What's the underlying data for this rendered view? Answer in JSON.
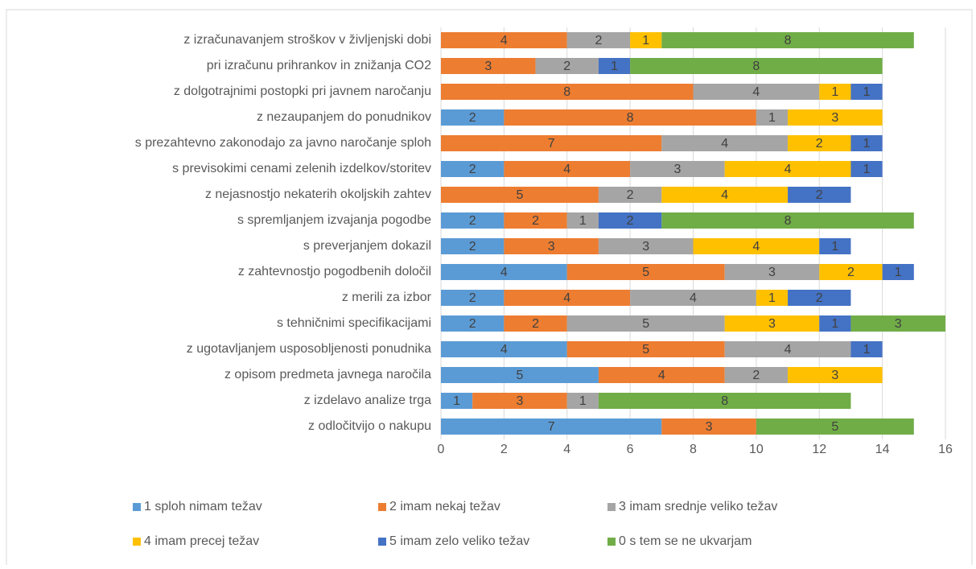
{
  "chart_data": {
    "type": "stacked-bar-horizontal",
    "categories": [
      "z izračunavanjem stroškov v življenjski dobi",
      "pri izračunu prihrankov in znižanja CO2",
      "z dolgotrajnimi postopki pri javnem naročanju",
      "z nezaupanjem do ponudnikov",
      "s prezahtevno zakonodajo za javno naročanje sploh",
      "s previsokimi cenami zelenih izdelkov/storitev",
      "z nejasnostjo nekaterih okoljskih zahtev",
      "s spremljanjem izvajanja pogodbe",
      "s preverjanjem dokazil",
      "z zahtevnostjo pogodbenih določil",
      "z merili za izbor",
      "s tehničnimi specifikacijami",
      "z ugotavljanjem usposobljenosti ponudnika",
      "z opisom predmeta javnega naročila",
      "z izdelavo analize trga",
      "z odločitvijo o nakupu"
    ],
    "series": [
      {
        "name": "1 sploh nimam težav",
        "color": "#5b9bd5",
        "values": [
          null,
          null,
          null,
          2,
          null,
          2,
          null,
          2,
          2,
          4,
          2,
          2,
          4,
          5,
          1,
          7
        ]
      },
      {
        "name": "2 imam nekaj težav",
        "color": "#ed7d31",
        "values": [
          4,
          3,
          8,
          8,
          7,
          4,
          5,
          2,
          3,
          5,
          4,
          2,
          5,
          4,
          3,
          3
        ]
      },
      {
        "name": "3 imam srednje veliko težav",
        "color": "#a5a5a5",
        "values": [
          2,
          2,
          4,
          1,
          4,
          3,
          2,
          1,
          3,
          3,
          4,
          5,
          4,
          2,
          1,
          null
        ]
      },
      {
        "name": "4 imam precej težav",
        "color": "#ffc000",
        "values": [
          1,
          null,
          1,
          3,
          2,
          4,
          4,
          null,
          4,
          2,
          1,
          3,
          null,
          3,
          null,
          null
        ]
      },
      {
        "name": "5 imam zelo veliko težav",
        "color": "#4472c4",
        "values": [
          null,
          1,
          1,
          null,
          1,
          1,
          2,
          2,
          1,
          1,
          2,
          1,
          1,
          null,
          null,
          null
        ]
      },
      {
        "name": "0 s tem se ne ukvarjam",
        "color": "#70ad47",
        "values": [
          8,
          8,
          null,
          null,
          null,
          null,
          null,
          8,
          null,
          null,
          null,
          3,
          null,
          null,
          8,
          5
        ]
      }
    ],
    "xlim": [
      0,
      16
    ],
    "xticks": [
      0,
      2,
      4,
      6,
      8,
      10,
      12,
      14,
      16
    ],
    "grid": true
  }
}
